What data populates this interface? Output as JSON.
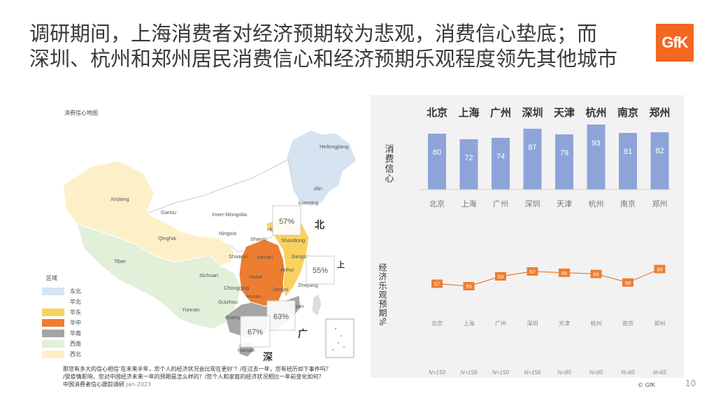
{
  "title_line1": "调研期间，上海消费者对经济预期较为悲观，消费信心垫底；而",
  "title_line2": "深圳、杭州和郑州居民消费信心和经济预期乐观程度领先其他城市",
  "logo_text": "GfK",
  "map": {
    "title": "消费信心地图",
    "province_labels": [
      "Heilongjiang",
      "Jilin",
      "Liaoning",
      "Xinjiang",
      "Gansu",
      "Inner-Mongolia",
      "Ningxia",
      "Qinghai",
      "Tibet",
      "Shaanxi",
      "Shanxi",
      "He",
      "Shandong",
      "Henan",
      "Jiangsu",
      "Anhui",
      "Hubei",
      "Zhejiang",
      "Sichuan",
      "Jiangxi",
      "Chongqing",
      "Guizhou",
      "Hunan",
      "Yunnan",
      "Fujian",
      "Guangxi",
      "Hainan"
    ],
    "callouts": [
      {
        "label": "57%",
        "city": "北"
      },
      {
        "label": "55%",
        "city": "上"
      },
      {
        "label": "63%",
        "city": "广"
      },
      {
        "label": "67%",
        "city": "深"
      }
    ]
  },
  "legend": {
    "title": "区域",
    "items": [
      {
        "label": "东北",
        "color": "#d6e4f2"
      },
      {
        "label": "华北",
        "color": "#ffffff"
      },
      {
        "label": "华东",
        "color": "#f9d15e"
      },
      {
        "label": "华中",
        "color": "#ed7d31"
      },
      {
        "label": "华南",
        "color": "#a5a5a5"
      },
      {
        "label": "西南",
        "color": "#e2efd9"
      },
      {
        "label": "西北",
        "color": "#fdf0c8"
      }
    ]
  },
  "notes": {
    "line1": "那您有多大的信心相信‘在未来半年，您个人的经济状况会比现在更好’？/在过去一年，您有经历如下事件吗？",
    "line2": "/受疫情影响，您对中国经济未来一年的预期是怎么样的？/您个人和家庭的经济状况相比一年前变化如何？",
    "source": "中国消费者信心跟踪调研",
    "date": "Jan-2023"
  },
  "chart_data": [
    {
      "type": "bar",
      "title": "",
      "ylabel": "消费信心",
      "categories": [
        "北京",
        "上海",
        "广州",
        "深圳",
        "天津",
        "杭州",
        "南京",
        "郑州"
      ],
      "values": [
        80,
        72,
        74,
        87,
        79,
        93,
        81,
        82
      ],
      "color": "#8ea4d9"
    },
    {
      "type": "line",
      "title": "",
      "ylabel": "经济乐观预期%",
      "categories": [
        "北京",
        "上海",
        "广州",
        "深圳",
        "天津",
        "杭州",
        "南京",
        "郑州"
      ],
      "values": [
        57,
        55,
        63,
        67,
        66,
        65,
        58,
        69
      ],
      "sample_sizes": [
        "N=150",
        "N=156",
        "N=150",
        "N=156",
        "N=80",
        "N=85",
        "N=85",
        "N=65"
      ],
      "color": "#ed7d31"
    }
  ],
  "footer": {
    "copyright": "© GfK",
    "page_number": "10"
  }
}
